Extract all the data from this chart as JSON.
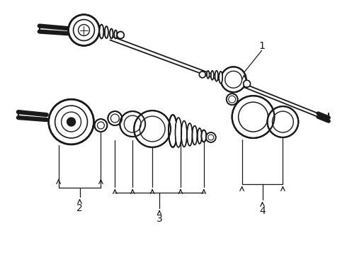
{
  "background_color": "#ffffff",
  "line_color": "#1a1a1a",
  "fig_width": 4.9,
  "fig_height": 3.6,
  "dpi": 100,
  "label_fontsize": 10
}
